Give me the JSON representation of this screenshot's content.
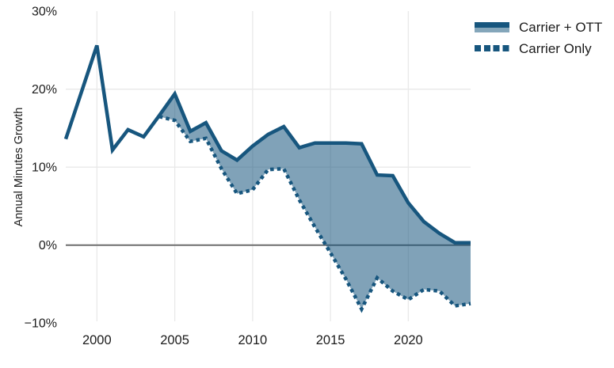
{
  "chart_data": {
    "type": "area",
    "title": "",
    "xlabel": "",
    "ylabel": "Annual Minutes Growth",
    "x": [
      1998,
      1999,
      2000,
      2001,
      2002,
      2003,
      2004,
      2005,
      2006,
      2007,
      2008,
      2009,
      2010,
      2011,
      2012,
      2013,
      2014,
      2015,
      2016,
      2017,
      2018,
      2019,
      2020,
      2021,
      2022,
      2023,
      2024
    ],
    "series": [
      {
        "name": "Carrier + OTT",
        "style": "solid line, area fill below down to Carrier Only",
        "values": [
          13.6,
          19.6,
          25.6,
          12.2,
          14.8,
          13.9,
          16.6,
          19.4,
          14.6,
          15.7,
          12.1,
          10.9,
          12.7,
          14.2,
          15.2,
          12.5,
          13.1,
          13.1,
          13.1,
          13.0,
          9.0,
          8.9,
          5.4,
          3.0,
          1.5,
          0.3,
          0.3
        ]
      },
      {
        "name": "Carrier Only",
        "style": "dotted line",
        "values": [
          null,
          null,
          null,
          null,
          null,
          null,
          16.5,
          16.0,
          13.3,
          13.7,
          9.8,
          6.6,
          7.1,
          9.7,
          9.8,
          5.8,
          2.3,
          -1.0,
          -4.4,
          -8.2,
          -4.2,
          -5.9,
          -7.0,
          -5.7,
          -5.9,
          -7.8,
          -7.5
        ]
      }
    ],
    "area_between_series": true,
    "xlim": [
      1998,
      2024
    ],
    "ylim": [
      -10,
      30
    ],
    "x_ticks": {
      "values": [
        2000,
        2005,
        2010,
        2015,
        2020
      ],
      "labels": [
        "2000",
        "2005",
        "2010",
        "2015",
        "2020"
      ]
    },
    "y_ticks": {
      "values": [
        30,
        20,
        10,
        0,
        -10
      ],
      "labels": [
        "30%",
        "20%",
        "10%",
        "0%",
        "−10%"
      ]
    },
    "grid_y_values": [
      20,
      10
    ],
    "zero_line": true,
    "grid": "light vertical at x ticks, light horizontal at 10% and 20%",
    "legend_position": "top-right",
    "colors": {
      "line": "#17567e",
      "area_fill": "rgba(23,86,126,0.55)",
      "legend_area_fill": "#84a6ba",
      "grid": "#e9e9e9",
      "zero_line": "#6f6f6f",
      "text": "#1b1b1b"
    }
  }
}
